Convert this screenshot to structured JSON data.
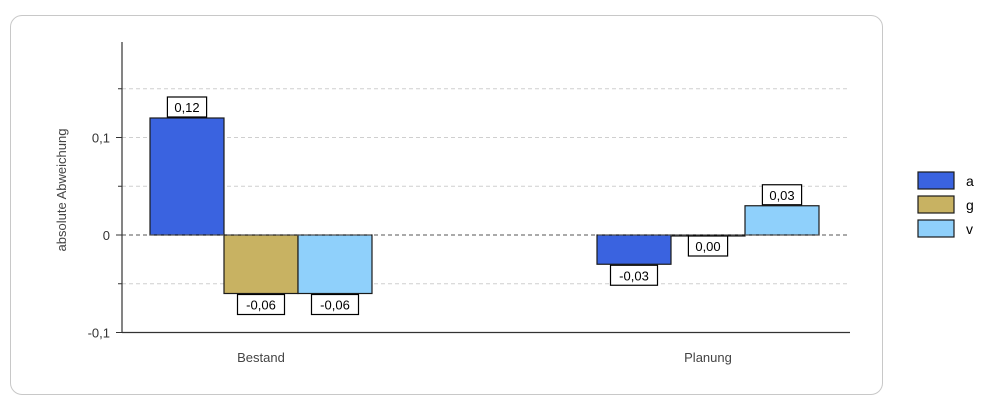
{
  "chart_data": {
    "type": "bar",
    "title": "",
    "xlabel": "",
    "ylabel": "absolute Abweichung",
    "categories": [
      "Bestand",
      "Planung"
    ],
    "series": [
      {
        "name": "a",
        "color": "#3a63e0",
        "values": [
          0.12,
          -0.03
        ],
        "labels": [
          "0,12",
          "-0,03"
        ]
      },
      {
        "name": "g",
        "color": "#c8b262",
        "values": [
          -0.06,
          0.0
        ],
        "labels": [
          "-0,06",
          "0,00"
        ]
      },
      {
        "name": "v",
        "color": "#8fd0fb",
        "values": [
          -0.06,
          0.03
        ],
        "labels": [
          "-0,06",
          "0,03"
        ]
      }
    ],
    "ylim": [
      -0.1,
      0.2
    ],
    "yticks": [
      {
        "value": 0.1,
        "label": "0,1"
      },
      {
        "value": 0,
        "label": "0"
      },
      {
        "value": -0.1,
        "label": "-0,1"
      }
    ],
    "gridlines": [
      0.15,
      0.1,
      0.05,
      0,
      -0.05
    ],
    "grid": "dashed-horizontal",
    "legend_position": "right"
  }
}
